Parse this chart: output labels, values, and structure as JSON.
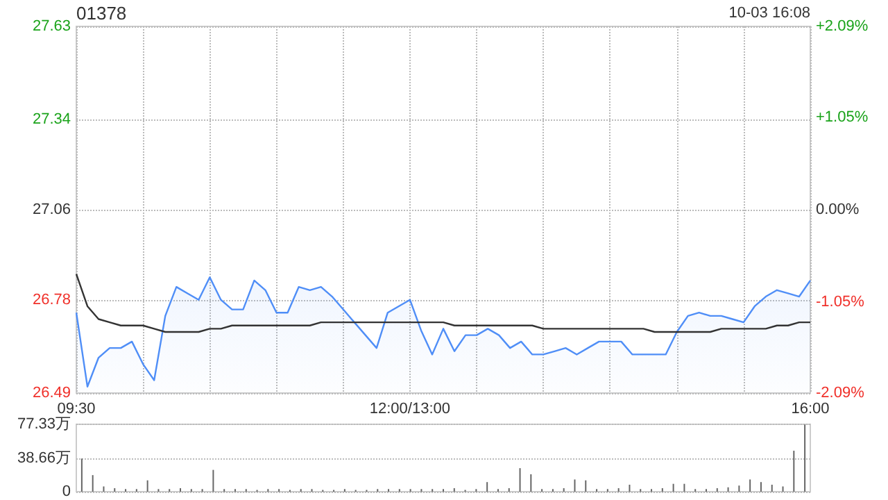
{
  "chart_data": [
    {
      "type": "area",
      "title": "01378",
      "annotations": [
        "10-03 16:08"
      ],
      "categories": [
        "09:30",
        null,
        null,
        null,
        null,
        null,
        null,
        null,
        null,
        null,
        null,
        null,
        null,
        null,
        null,
        null,
        null,
        null,
        null,
        null,
        null,
        null,
        null,
        null,
        null,
        null,
        null,
        null,
        null,
        null,
        "12:00/13:00",
        null,
        null,
        null,
        null,
        null,
        null,
        null,
        null,
        null,
        null,
        null,
        null,
        null,
        null,
        null,
        null,
        null,
        null,
        null,
        null,
        null,
        null,
        null,
        null,
        null,
        null,
        null,
        null,
        null,
        null,
        null,
        null,
        null,
        null,
        null,
        "16:00"
      ],
      "series": [
        {
          "type": "area",
          "color": "#4f8ef7",
          "values": [
            26.74,
            26.51,
            26.6,
            26.63,
            26.63,
            26.65,
            26.58,
            26.53,
            26.73,
            26.82,
            26.8,
            26.78,
            26.85,
            26.78,
            26.75,
            26.75,
            26.84,
            26.81,
            26.74,
            26.74,
            26.82,
            26.81,
            26.82,
            26.79,
            26.75,
            26.71,
            26.67,
            26.63,
            26.74,
            26.76,
            26.78,
            26.685,
            26.61,
            26.69,
            26.62,
            26.67,
            26.67,
            26.69,
            26.67,
            26.63,
            26.65,
            26.61,
            26.61,
            26.62,
            26.63,
            26.61,
            26.63,
            26.65,
            26.65,
            26.65,
            26.61,
            26.61,
            26.61,
            26.61,
            26.68,
            26.73,
            26.74,
            26.73,
            26.73,
            26.72,
            26.71,
            26.76,
            26.79,
            26.81,
            26.8,
            26.79,
            26.84
          ]
        },
        {
          "type": "line",
          "color": "#333333",
          "values": [
            26.86,
            26.76,
            26.72,
            26.71,
            26.7,
            26.7,
            26.7,
            26.69,
            26.68,
            26.68,
            26.68,
            26.68,
            26.69,
            26.69,
            26.7,
            26.7,
            26.7,
            26.7,
            26.7,
            26.7,
            26.7,
            26.7,
            26.71,
            26.71,
            26.71,
            26.71,
            26.71,
            26.71,
            26.71,
            26.71,
            26.71,
            26.71,
            26.71,
            26.71,
            26.7,
            26.7,
            26.7,
            26.7,
            26.7,
            26.7,
            26.7,
            26.7,
            26.69,
            26.69,
            26.69,
            26.69,
            26.69,
            26.69,
            26.69,
            26.69,
            26.69,
            26.69,
            26.68,
            26.68,
            26.68,
            26.68,
            26.68,
            26.68,
            26.69,
            26.69,
            26.69,
            26.69,
            26.69,
            26.7,
            26.7,
            26.71,
            26.71
          ]
        }
      ],
      "ylim": [
        26.49,
        27.63
      ],
      "yticks": [
        26.49,
        26.78,
        27.06,
        27.34,
        27.63
      ],
      "y2lim": [
        -2.09,
        2.09
      ],
      "y2ticks": [
        {
          "value": -2.09,
          "label": "-2.09%"
        },
        {
          "value": -1.05,
          "label": "-1.05%"
        },
        {
          "value": 0,
          "label": "0.00%"
        },
        {
          "value": 1.05,
          "label": "+1.05%"
        },
        {
          "value": 2.09,
          "label": "+2.09%"
        }
      ],
      "grid": true,
      "marker": "none"
    },
    {
      "type": "bar",
      "color": "#666666",
      "categories": [
        null,
        null,
        null,
        null,
        null,
        null,
        null,
        null,
        null,
        null,
        null,
        null,
        null,
        null,
        null,
        null,
        null,
        null,
        null,
        null,
        null,
        null,
        null,
        null,
        null,
        null,
        null,
        null,
        null,
        null,
        null,
        null,
        null,
        null,
        null,
        null,
        null,
        null,
        null,
        null,
        null,
        null,
        null,
        null,
        null,
        null,
        null,
        null,
        null,
        null,
        null,
        null,
        null,
        null,
        null,
        null,
        null,
        null,
        null,
        null,
        null,
        null,
        null,
        null,
        null,
        null,
        null
      ],
      "values": [
        38,
        19,
        6,
        4,
        3,
        3,
        13,
        3,
        3,
        4,
        3,
        3,
        25,
        3,
        3,
        3,
        2,
        3,
        3,
        2,
        3,
        3,
        2,
        2,
        3,
        2,
        2,
        3,
        3,
        3,
        3,
        3,
        3,
        3,
        4,
        2,
        3,
        11,
        3,
        4,
        27,
        20,
        3,
        3,
        4,
        14,
        13,
        3,
        3,
        4,
        8,
        3,
        3,
        4,
        9,
        9,
        3,
        3,
        4,
        5,
        7,
        14,
        11,
        8,
        6,
        47,
        77
      ],
      "ylim": [
        0,
        77.33
      ],
      "yticks": [
        0,
        {
          "value": 38.66,
          "label": "38.66万"
        },
        {
          "value": 77.33,
          "label": "77.33万"
        }
      ],
      "grid": "y",
      "tick_labels": "y"
    }
  ]
}
